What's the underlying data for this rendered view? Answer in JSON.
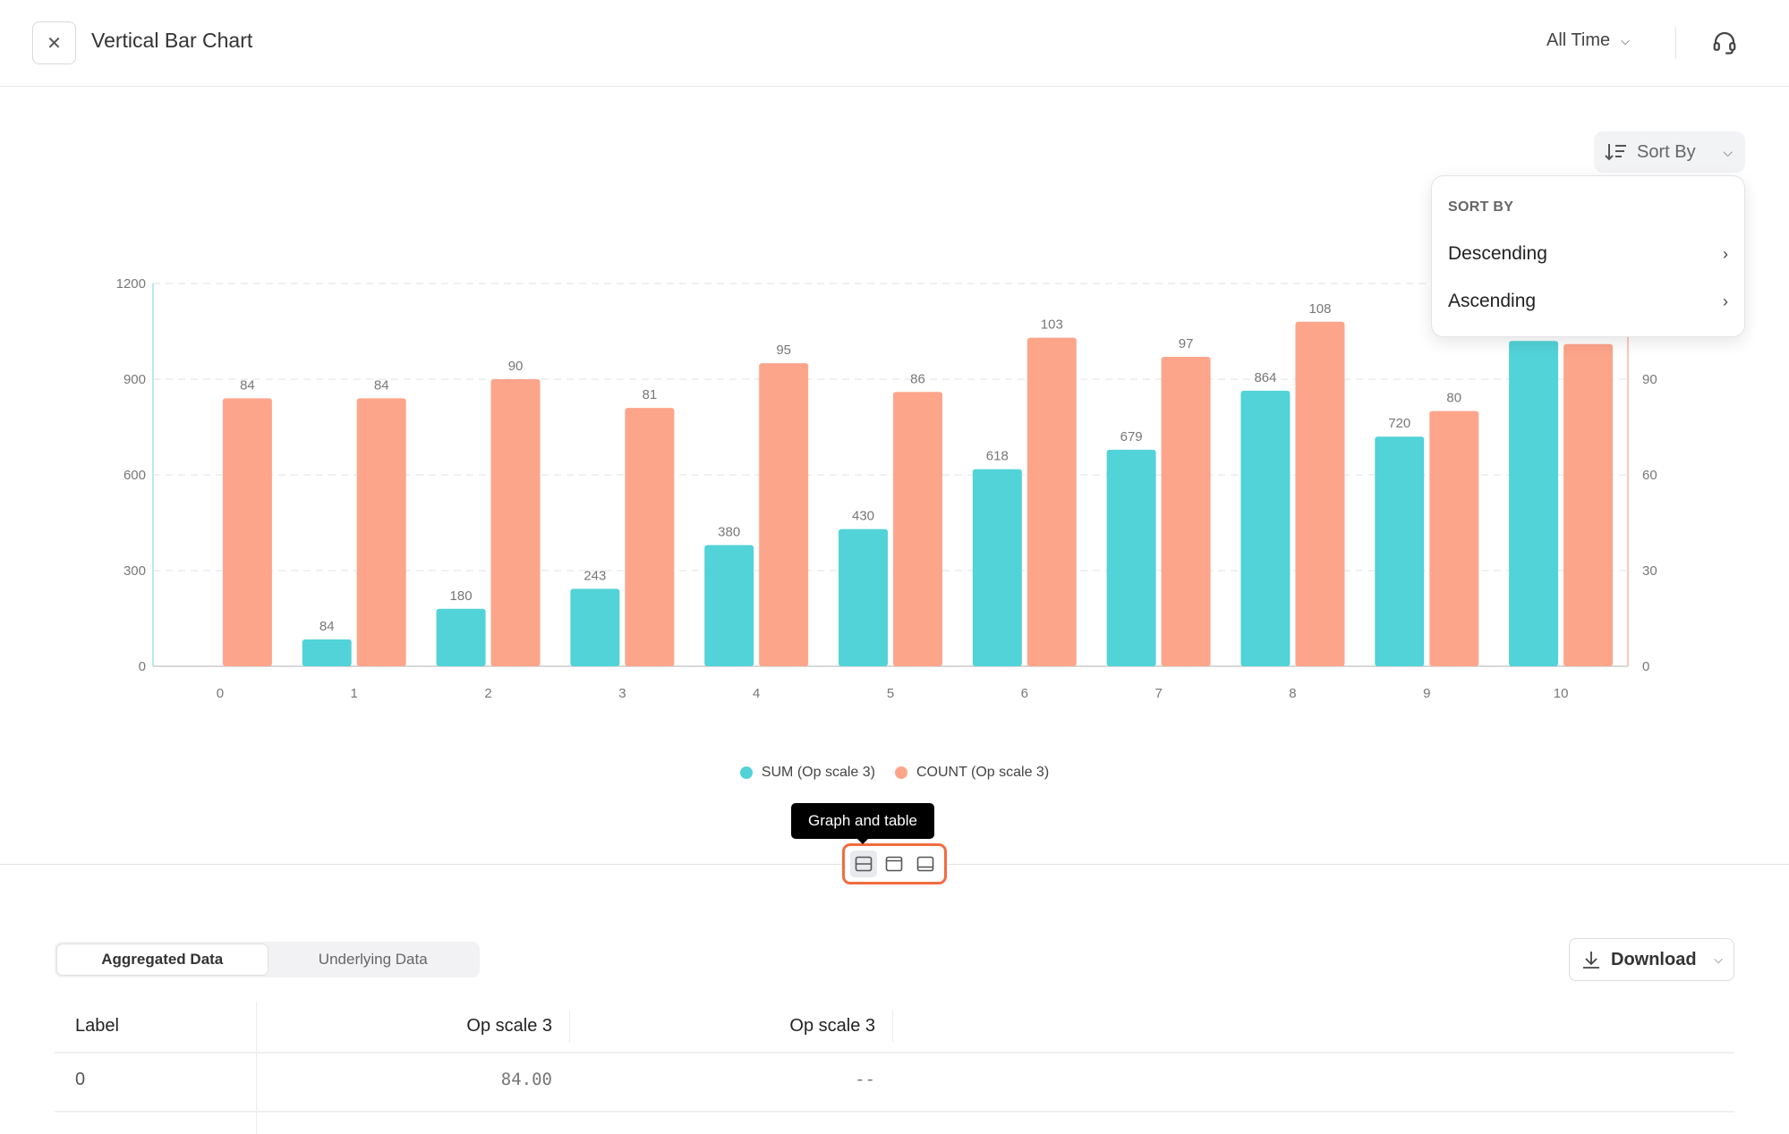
{
  "header": {
    "title": "Vertical Bar Chart",
    "time_filter": "All Time"
  },
  "sort": {
    "button_label": "Sort By",
    "menu_header": "SORT BY",
    "options": [
      "Descending",
      "Ascending"
    ]
  },
  "chart_data": {
    "type": "bar",
    "categories": [
      "0",
      "1",
      "2",
      "3",
      "4",
      "5",
      "6",
      "7",
      "8",
      "9",
      "10"
    ],
    "series": [
      {
        "name": "SUM (Op scale 3)",
        "axis": "left",
        "color": "#52d3d8",
        "values": [
          0,
          84,
          180,
          243,
          380,
          430,
          618,
          679,
          864,
          720,
          1020
        ]
      },
      {
        "name": "COUNT (Op scale 3)",
        "axis": "right",
        "color": "#fda58b",
        "values": [
          84,
          84,
          90,
          81,
          95,
          86,
          103,
          97,
          108,
          80,
          101
        ]
      }
    ],
    "y_left": {
      "ticks": [
        "0",
        "300",
        "600",
        "900",
        "1200"
      ],
      "ylim": [
        0,
        1200
      ]
    },
    "y_right": {
      "ticks": [
        "0",
        "30",
        "60",
        "90"
      ],
      "ylim": [
        0,
        120
      ]
    },
    "grid": true,
    "legend": "bottom"
  },
  "view": {
    "tooltip": "Graph and table",
    "icons": [
      "graph-and-table-icon",
      "graph-only-icon",
      "table-only-icon"
    ],
    "accent": "#f26c3f"
  },
  "data_tabs": [
    "Aggregated Data",
    "Underlying Data"
  ],
  "download_label": "Download",
  "table": {
    "columns": [
      "Label",
      "Op scale 3",
      "Op scale 3"
    ],
    "rows": [
      [
        "0",
        "84.00",
        "--"
      ]
    ]
  }
}
